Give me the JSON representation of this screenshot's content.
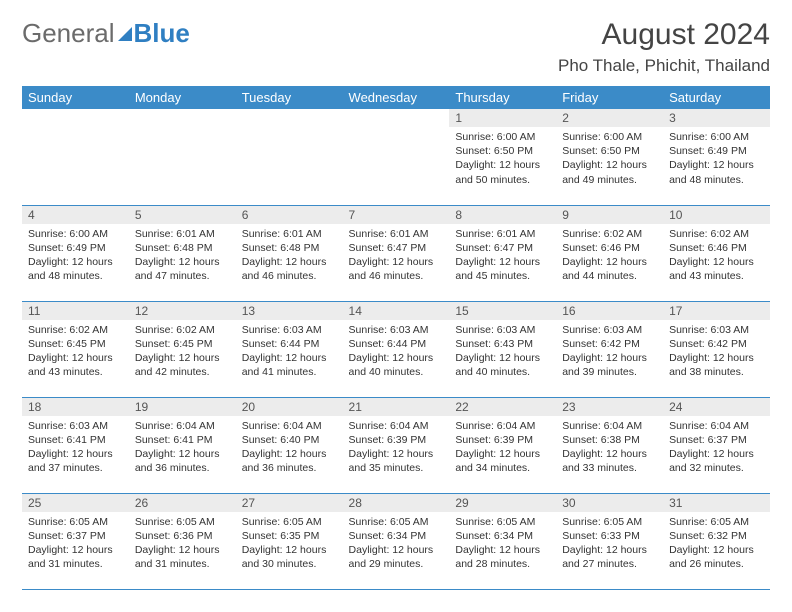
{
  "brand": {
    "general": "General",
    "blue": "Blue"
  },
  "title": "August 2024",
  "location": "Pho Thale, Phichit, Thailand",
  "colors": {
    "header_bg": "#3b8bc8",
    "header_text": "#ffffff",
    "daynum_bg": "#ececec",
    "border": "#3b8bc8",
    "logo_gray": "#6b6b6b",
    "logo_blue": "#2f7fc2",
    "text": "#333333",
    "background": "#ffffff"
  },
  "day_headers": [
    "Sunday",
    "Monday",
    "Tuesday",
    "Wednesday",
    "Thursday",
    "Friday",
    "Saturday"
  ],
  "weeks": [
    [
      {
        "empty": true
      },
      {
        "empty": true
      },
      {
        "empty": true
      },
      {
        "empty": true
      },
      {
        "num": "1",
        "sunrise": "Sunrise: 6:00 AM",
        "sunset": "Sunset: 6:50 PM",
        "day1": "Daylight: 12 hours",
        "day2": "and 50 minutes."
      },
      {
        "num": "2",
        "sunrise": "Sunrise: 6:00 AM",
        "sunset": "Sunset: 6:50 PM",
        "day1": "Daylight: 12 hours",
        "day2": "and 49 minutes."
      },
      {
        "num": "3",
        "sunrise": "Sunrise: 6:00 AM",
        "sunset": "Sunset: 6:49 PM",
        "day1": "Daylight: 12 hours",
        "day2": "and 48 minutes."
      }
    ],
    [
      {
        "num": "4",
        "sunrise": "Sunrise: 6:00 AM",
        "sunset": "Sunset: 6:49 PM",
        "day1": "Daylight: 12 hours",
        "day2": "and 48 minutes."
      },
      {
        "num": "5",
        "sunrise": "Sunrise: 6:01 AM",
        "sunset": "Sunset: 6:48 PM",
        "day1": "Daylight: 12 hours",
        "day2": "and 47 minutes."
      },
      {
        "num": "6",
        "sunrise": "Sunrise: 6:01 AM",
        "sunset": "Sunset: 6:48 PM",
        "day1": "Daylight: 12 hours",
        "day2": "and 46 minutes."
      },
      {
        "num": "7",
        "sunrise": "Sunrise: 6:01 AM",
        "sunset": "Sunset: 6:47 PM",
        "day1": "Daylight: 12 hours",
        "day2": "and 46 minutes."
      },
      {
        "num": "8",
        "sunrise": "Sunrise: 6:01 AM",
        "sunset": "Sunset: 6:47 PM",
        "day1": "Daylight: 12 hours",
        "day2": "and 45 minutes."
      },
      {
        "num": "9",
        "sunrise": "Sunrise: 6:02 AM",
        "sunset": "Sunset: 6:46 PM",
        "day1": "Daylight: 12 hours",
        "day2": "and 44 minutes."
      },
      {
        "num": "10",
        "sunrise": "Sunrise: 6:02 AM",
        "sunset": "Sunset: 6:46 PM",
        "day1": "Daylight: 12 hours",
        "day2": "and 43 minutes."
      }
    ],
    [
      {
        "num": "11",
        "sunrise": "Sunrise: 6:02 AM",
        "sunset": "Sunset: 6:45 PM",
        "day1": "Daylight: 12 hours",
        "day2": "and 43 minutes."
      },
      {
        "num": "12",
        "sunrise": "Sunrise: 6:02 AM",
        "sunset": "Sunset: 6:45 PM",
        "day1": "Daylight: 12 hours",
        "day2": "and 42 minutes."
      },
      {
        "num": "13",
        "sunrise": "Sunrise: 6:03 AM",
        "sunset": "Sunset: 6:44 PM",
        "day1": "Daylight: 12 hours",
        "day2": "and 41 minutes."
      },
      {
        "num": "14",
        "sunrise": "Sunrise: 6:03 AM",
        "sunset": "Sunset: 6:44 PM",
        "day1": "Daylight: 12 hours",
        "day2": "and 40 minutes."
      },
      {
        "num": "15",
        "sunrise": "Sunrise: 6:03 AM",
        "sunset": "Sunset: 6:43 PM",
        "day1": "Daylight: 12 hours",
        "day2": "and 40 minutes."
      },
      {
        "num": "16",
        "sunrise": "Sunrise: 6:03 AM",
        "sunset": "Sunset: 6:42 PM",
        "day1": "Daylight: 12 hours",
        "day2": "and 39 minutes."
      },
      {
        "num": "17",
        "sunrise": "Sunrise: 6:03 AM",
        "sunset": "Sunset: 6:42 PM",
        "day1": "Daylight: 12 hours",
        "day2": "and 38 minutes."
      }
    ],
    [
      {
        "num": "18",
        "sunrise": "Sunrise: 6:03 AM",
        "sunset": "Sunset: 6:41 PM",
        "day1": "Daylight: 12 hours",
        "day2": "and 37 minutes."
      },
      {
        "num": "19",
        "sunrise": "Sunrise: 6:04 AM",
        "sunset": "Sunset: 6:41 PM",
        "day1": "Daylight: 12 hours",
        "day2": "and 36 minutes."
      },
      {
        "num": "20",
        "sunrise": "Sunrise: 6:04 AM",
        "sunset": "Sunset: 6:40 PM",
        "day1": "Daylight: 12 hours",
        "day2": "and 36 minutes."
      },
      {
        "num": "21",
        "sunrise": "Sunrise: 6:04 AM",
        "sunset": "Sunset: 6:39 PM",
        "day1": "Daylight: 12 hours",
        "day2": "and 35 minutes."
      },
      {
        "num": "22",
        "sunrise": "Sunrise: 6:04 AM",
        "sunset": "Sunset: 6:39 PM",
        "day1": "Daylight: 12 hours",
        "day2": "and 34 minutes."
      },
      {
        "num": "23",
        "sunrise": "Sunrise: 6:04 AM",
        "sunset": "Sunset: 6:38 PM",
        "day1": "Daylight: 12 hours",
        "day2": "and 33 minutes."
      },
      {
        "num": "24",
        "sunrise": "Sunrise: 6:04 AM",
        "sunset": "Sunset: 6:37 PM",
        "day1": "Daylight: 12 hours",
        "day2": "and 32 minutes."
      }
    ],
    [
      {
        "num": "25",
        "sunrise": "Sunrise: 6:05 AM",
        "sunset": "Sunset: 6:37 PM",
        "day1": "Daylight: 12 hours",
        "day2": "and 31 minutes."
      },
      {
        "num": "26",
        "sunrise": "Sunrise: 6:05 AM",
        "sunset": "Sunset: 6:36 PM",
        "day1": "Daylight: 12 hours",
        "day2": "and 31 minutes."
      },
      {
        "num": "27",
        "sunrise": "Sunrise: 6:05 AM",
        "sunset": "Sunset: 6:35 PM",
        "day1": "Daylight: 12 hours",
        "day2": "and 30 minutes."
      },
      {
        "num": "28",
        "sunrise": "Sunrise: 6:05 AM",
        "sunset": "Sunset: 6:34 PM",
        "day1": "Daylight: 12 hours",
        "day2": "and 29 minutes."
      },
      {
        "num": "29",
        "sunrise": "Sunrise: 6:05 AM",
        "sunset": "Sunset: 6:34 PM",
        "day1": "Daylight: 12 hours",
        "day2": "and 28 minutes."
      },
      {
        "num": "30",
        "sunrise": "Sunrise: 6:05 AM",
        "sunset": "Sunset: 6:33 PM",
        "day1": "Daylight: 12 hours",
        "day2": "and 27 minutes."
      },
      {
        "num": "31",
        "sunrise": "Sunrise: 6:05 AM",
        "sunset": "Sunset: 6:32 PM",
        "day1": "Daylight: 12 hours",
        "day2": "and 26 minutes."
      }
    ]
  ]
}
